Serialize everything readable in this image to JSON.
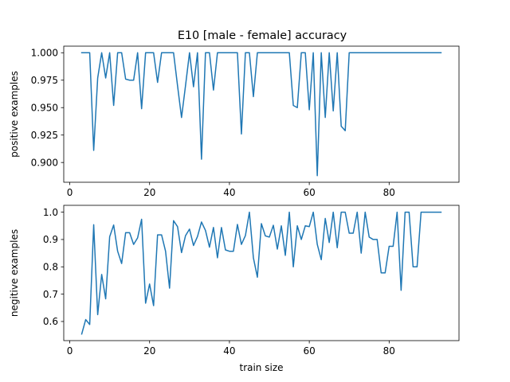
{
  "figure": {
    "title": "E10 [male - female] accuracy"
  },
  "chart_data": [
    {
      "type": "line",
      "title": "E10 [male - female] accuracy",
      "xlabel": "",
      "ylabel": "positive examples",
      "xlim": [
        -1.5,
        97.5
      ],
      "ylim": [
        0.882,
        1.006
      ],
      "xticks": [
        0,
        20,
        40,
        60,
        80
      ],
      "yticks": [
        0.9,
        0.925,
        0.95,
        0.975,
        1.0
      ],
      "ytick_labels": [
        "0.900",
        "0.925",
        "0.950",
        "0.975",
        "1.000"
      ],
      "grid": false,
      "series": [
        {
          "color": "#1f77b4",
          "x": [
            3,
            4,
            5,
            6,
            7,
            8,
            9,
            10,
            11,
            12,
            13,
            14,
            15,
            16,
            17,
            18,
            19,
            20,
            21,
            22,
            23,
            24,
            25,
            26,
            27,
            28,
            29,
            30,
            31,
            32,
            33,
            34,
            35,
            36,
            37,
            38,
            39,
            40,
            41,
            42,
            43,
            44,
            45,
            46,
            47,
            48,
            49,
            50,
            51,
            52,
            53,
            54,
            55,
            56,
            57,
            58,
            59,
            60,
            61,
            62,
            63,
            64,
            65,
            66,
            67,
            68,
            69,
            70,
            71,
            72,
            73,
            74,
            75,
            76,
            77,
            78,
            79,
            80,
            81,
            82,
            83,
            84,
            85,
            86,
            87,
            88,
            89,
            90,
            91,
            92,
            93
          ],
          "y": [
            1.0,
            1.0,
            1.0,
            0.911,
            0.977,
            1.0,
            0.977,
            1.0,
            0.952,
            1.0,
            1.0,
            0.976,
            0.975,
            0.975,
            1.0,
            0.949,
            1.0,
            1.0,
            1.0,
            0.973,
            1.0,
            1.0,
            1.0,
            1.0,
            0.97,
            0.941,
            0.97,
            1.0,
            0.969,
            1.0,
            0.903,
            1.0,
            1.0,
            0.966,
            1.0,
            1.0,
            1.0,
            1.0,
            1.0,
            1.0,
            0.926,
            1.0,
            1.0,
            0.96,
            1.0,
            1.0,
            1.0,
            1.0,
            1.0,
            1.0,
            1.0,
            1.0,
            1.0,
            0.952,
            0.95,
            1.0,
            1.0,
            0.948,
            1.0,
            0.888,
            1.0,
            0.941,
            1.0,
            0.947,
            1.0,
            0.933,
            0.929,
            1.0,
            1.0,
            1.0,
            1.0,
            1.0,
            1.0,
            1.0,
            1.0,
            1.0,
            1.0,
            1.0,
            1.0,
            1.0,
            1.0,
            1.0,
            1.0,
            1.0,
            1.0,
            1.0,
            1.0,
            1.0,
            1.0,
            1.0,
            1.0
          ]
        }
      ]
    },
    {
      "type": "line",
      "title": "",
      "xlabel": "train size",
      "ylabel": "negitive examples",
      "xlim": [
        -1.5,
        97.5
      ],
      "ylim": [
        0.53,
        1.025
      ],
      "xticks": [
        0,
        20,
        40,
        60,
        80
      ],
      "yticks": [
        0.6,
        0.7,
        0.8,
        0.9,
        1.0
      ],
      "ytick_labels": [
        "0.6",
        "0.7",
        "0.8",
        "0.9",
        "1.0"
      ],
      "grid": false,
      "series": [
        {
          "color": "#1f77b4",
          "x": [
            3,
            4,
            5,
            6,
            7,
            8,
            9,
            10,
            11,
            12,
            13,
            14,
            15,
            16,
            17,
            18,
            19,
            20,
            21,
            22,
            23,
            24,
            25,
            26,
            27,
            28,
            29,
            30,
            31,
            32,
            33,
            34,
            35,
            36,
            37,
            38,
            39,
            40,
            41,
            42,
            43,
            44,
            45,
            46,
            47,
            48,
            49,
            50,
            51,
            52,
            53,
            54,
            55,
            56,
            57,
            58,
            59,
            60,
            61,
            62,
            63,
            64,
            65,
            66,
            67,
            68,
            69,
            70,
            71,
            72,
            73,
            74,
            75,
            76,
            77,
            78,
            79,
            80,
            81,
            82,
            83,
            84,
            85,
            86,
            87,
            88,
            89,
            90,
            91,
            92,
            93
          ],
          "y": [
            0.554,
            0.607,
            0.589,
            0.954,
            0.625,
            0.772,
            0.683,
            0.91,
            0.953,
            0.857,
            0.812,
            0.925,
            0.925,
            0.882,
            0.906,
            0.974,
            0.667,
            0.737,
            0.658,
            0.917,
            0.917,
            0.857,
            0.722,
            0.969,
            0.947,
            0.852,
            0.914,
            0.938,
            0.878,
            0.911,
            0.964,
            0.933,
            0.872,
            0.944,
            0.833,
            0.944,
            0.862,
            0.857,
            0.857,
            0.955,
            0.882,
            0.914,
            1.0,
            0.833,
            0.762,
            0.958,
            0.913,
            0.909,
            0.952,
            0.865,
            0.95,
            0.842,
            1.0,
            0.8,
            0.95,
            0.9,
            0.95,
            0.947,
            1.0,
            0.882,
            0.826,
            0.977,
            0.889,
            1.0,
            0.87,
            1.0,
            1.0,
            0.923,
            0.923,
            1.0,
            0.85,
            1.0,
            0.909,
            0.9,
            0.9,
            0.778,
            0.778,
            0.875,
            0.875,
            1.0,
            0.714,
            1.0,
            1.0,
            0.8,
            0.8,
            1.0,
            1.0,
            1.0,
            1.0,
            1.0,
            1.0
          ]
        }
      ]
    }
  ]
}
